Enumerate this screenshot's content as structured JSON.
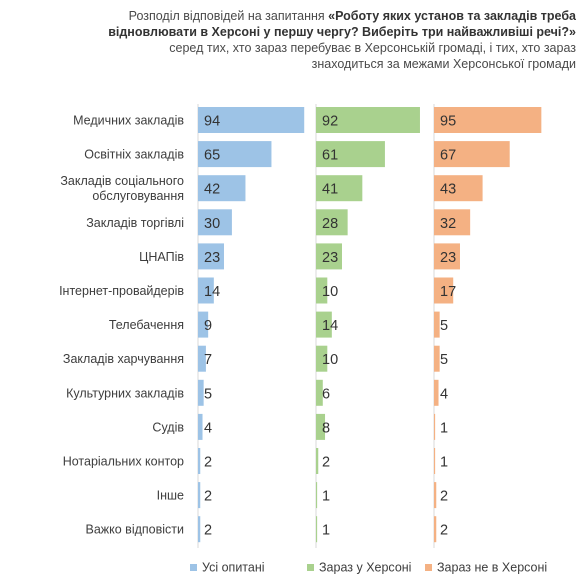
{
  "title": {
    "prefix": "Розподіл відповідей на запитання ",
    "question": "«Роботу яких установ та закладів треба відновлювати в Херсоні у першу чергу? Виберіть три найважливіші речі?»",
    "suffix": " серед тих, хто зараз перебуває в Херсонській громаді, і тих, хто зараз знаходиться за межами Херсонської громади"
  },
  "chart_data": {
    "type": "bar",
    "orientation": "horizontal",
    "layout": "small-multiples",
    "categories": [
      "Медичних закладів",
      "Освітніх закладів",
      "Закладів соціального обслуговування",
      "Закладів торгівлі",
      "ЦНАПів",
      "Інтернет-провайдерів",
      "Телебачення",
      "Закладів харчування",
      "Культурних закладів",
      "Судів",
      "Нотаріальних контор",
      "Інше",
      "Важко відповісти"
    ],
    "series": [
      {
        "name": "Усі опитані",
        "color": "#9dc3e6",
        "values": [
          94,
          65,
          42,
          30,
          23,
          14,
          9,
          7,
          5,
          4,
          2,
          2,
          2
        ]
      },
      {
        "name": "Зараз у Херсоні",
        "color": "#a9d18e",
        "values": [
          92,
          61,
          41,
          28,
          23,
          10,
          14,
          10,
          6,
          8,
          2,
          1,
          1
        ]
      },
      {
        "name": "Зараз не в Херсоні",
        "color": "#f4b183",
        "values": [
          95,
          67,
          43,
          32,
          23,
          17,
          5,
          5,
          4,
          1,
          1,
          2,
          2
        ]
      }
    ],
    "xlim": [
      0,
      100
    ],
    "axis_color": "#d9d9d9",
    "legend_position": "bottom",
    "grid": false
  }
}
